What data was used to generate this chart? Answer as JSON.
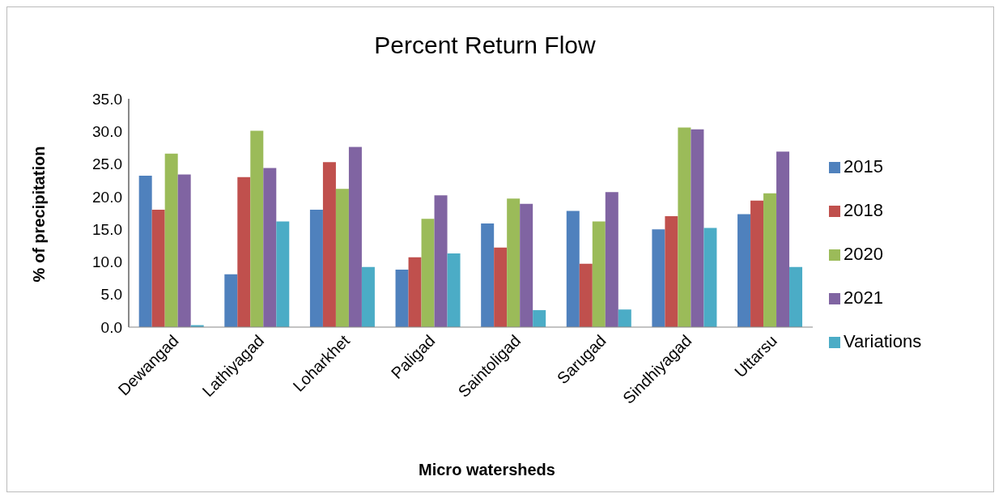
{
  "chart_data": {
    "type": "bar",
    "title": "Percent Return Flow",
    "xlabel": "Micro watersheds",
    "ylabel": "% of precipitation",
    "categories": [
      "Dewangad",
      "Lathiyagad",
      "Loharkhet",
      "Paligad",
      "Saintoligad",
      "Sarugad",
      "Sindhiyagad",
      "Uttarsu"
    ],
    "series": [
      {
        "name": "2015",
        "color": "#4f81bd",
        "values": [
          23.2,
          8.1,
          18.0,
          8.8,
          15.9,
          17.8,
          15.0,
          17.3
        ]
      },
      {
        "name": "2018",
        "color": "#c0504d",
        "values": [
          18.0,
          23.0,
          25.3,
          10.7,
          12.2,
          9.7,
          17.0,
          19.4
        ]
      },
      {
        "name": "2020",
        "color": "#9bbb59",
        "values": [
          26.6,
          30.1,
          21.2,
          16.6,
          19.7,
          16.2,
          30.6,
          20.5
        ]
      },
      {
        "name": "2021",
        "color": "#8064a2",
        "values": [
          23.4,
          24.4,
          27.6,
          20.2,
          18.9,
          20.7,
          30.3,
          26.9
        ]
      },
      {
        "name": "Variations",
        "color": "#4bacc6",
        "values": [
          0.3,
          16.2,
          9.2,
          11.3,
          2.6,
          2.7,
          15.2,
          9.2
        ]
      }
    ],
    "ylim": [
      0,
      35
    ],
    "yticks": [
      {
        "value": 0,
        "label": "0.0"
      },
      {
        "value": 5,
        "label": "5.0"
      },
      {
        "value": 10,
        "label": "10.0"
      },
      {
        "value": 15,
        "label": "15.0"
      },
      {
        "value": 20,
        "label": "20.0"
      },
      {
        "value": 25,
        "label": "25.0"
      },
      {
        "value": 30,
        "label": "30.0"
      },
      {
        "value": 35,
        "label": "35.0"
      }
    ],
    "grid": false,
    "legend": "right"
  }
}
